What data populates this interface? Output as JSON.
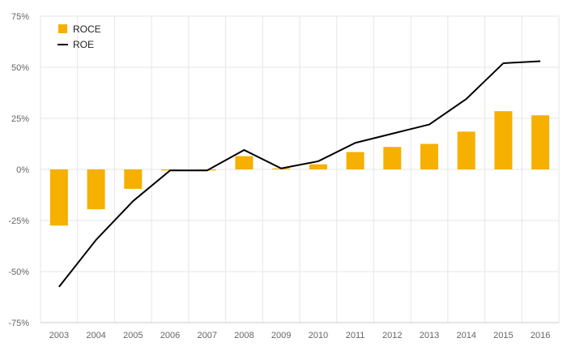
{
  "chart_data": {
    "type": "bar+line",
    "categories": [
      "2003",
      "2004",
      "2005",
      "2006",
      "2007",
      "2008",
      "2009",
      "2010",
      "2011",
      "2012",
      "2013",
      "2014",
      "2015",
      "2016"
    ],
    "series": [
      {
        "name": "ROCE",
        "type": "bar",
        "color": "#F5B000",
        "values": [
          -27.5,
          -19.5,
          -9.5,
          -0.5,
          -0.5,
          6.5,
          0.5,
          2.5,
          8.5,
          11,
          12.5,
          18.5,
          28.5,
          26.5
        ]
      },
      {
        "name": "ROE",
        "type": "line",
        "color": "#000000",
        "values": [
          -57.5,
          -34.5,
          -15.5,
          -0.5,
          -0.5,
          9.5,
          0.5,
          4,
          13,
          17.5,
          22,
          34.5,
          52,
          53
        ]
      }
    ],
    "y_ticks": [
      75,
      50,
      25,
      0,
      -25,
      -50,
      -75
    ],
    "y_tick_labels": [
      "75%",
      "50%",
      "25%",
      "0%",
      "-25%",
      "-50%",
      "-75%"
    ],
    "ylim": [
      -75,
      75
    ],
    "grid": true,
    "legend": "top-left",
    "title": "",
    "xlabel": "",
    "ylabel": ""
  }
}
